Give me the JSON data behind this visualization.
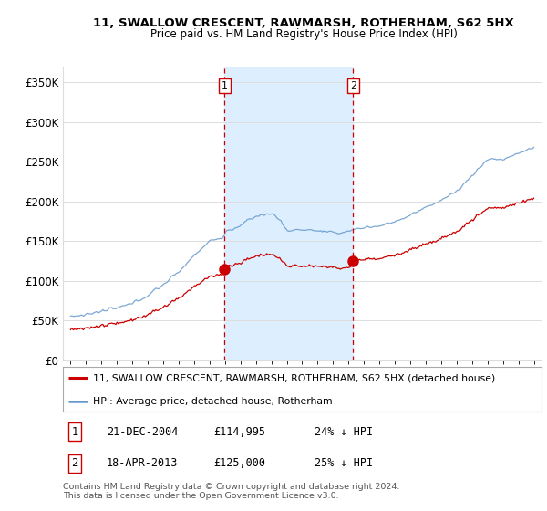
{
  "title1": "11, SWALLOW CRESCENT, RAWMARSH, ROTHERHAM, S62 5HX",
  "title2": "Price paid vs. HM Land Registry's House Price Index (HPI)",
  "legend_line1": "11, SWALLOW CRESCENT, RAWMARSH, ROTHERHAM, S62 5HX (detached house)",
  "legend_line2": "HPI: Average price, detached house, Rotherham",
  "sale1_date": "21-DEC-2004",
  "sale1_price": 114995,
  "sale1_hpi": "24% ↓ HPI",
  "sale2_date": "18-APR-2013",
  "sale2_price": 125000,
  "sale2_hpi": "25% ↓ HPI",
  "vline1_x": 2004.97,
  "vline2_x": 2013.3,
  "marker1_x": 2004.97,
  "marker1_y": 114995,
  "marker2_x": 2013.3,
  "marker2_y": 125000,
  "ylabel_ticks": [
    "£0",
    "£50K",
    "£100K",
    "£150K",
    "£200K",
    "£250K",
    "£300K",
    "£350K"
  ],
  "ytick_vals": [
    0,
    50000,
    100000,
    150000,
    200000,
    250000,
    300000,
    350000
  ],
  "ylim": [
    0,
    370000
  ],
  "xlim_start": 1994.5,
  "xlim_end": 2025.5,
  "background_color": "#ffffff",
  "plot_bg_color": "#ffffff",
  "shaded_region_color": "#ddeeff",
  "red_line_color": "#cc0000",
  "blue_line_color": "#6699cc",
  "vline_color": "#cc0000",
  "grid_color": "#dddddd",
  "footer_text": "Contains HM Land Registry data © Crown copyright and database right 2024.\nThis data is licensed under the Open Government Licence v3.0."
}
